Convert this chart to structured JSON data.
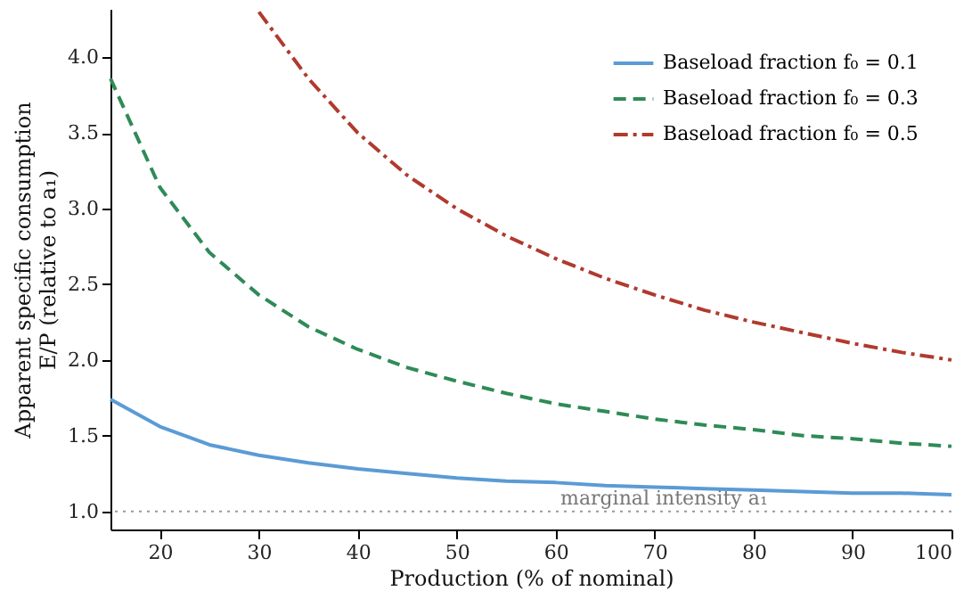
{
  "chart_data": {
    "type": "line",
    "xlabel": "Production (% of nominal)",
    "ylabel": "Apparent specific consumption\nE/P (relative to a₁)",
    "xlim": [
      15,
      100
    ],
    "xticks": [
      20,
      30,
      40,
      50,
      60,
      70,
      80,
      90,
      100
    ],
    "ylim": [
      0.88,
      4.32
    ],
    "yticks": [
      {
        "value": 1,
        "label": "1.0"
      },
      {
        "value": 1.5,
        "label": "1.5"
      },
      {
        "value": 2,
        "label": "2.0"
      },
      {
        "value": 2.5,
        "label": "2.5"
      },
      {
        "value": 3,
        "label": "3.0"
      },
      {
        "value": 3.5,
        "label": "3.5"
      },
      {
        "value": 4,
        "label": "4.0"
      }
    ],
    "grid": false,
    "legend": "top right",
    "ref_lines": [
      {
        "axis": "y",
        "value": 1,
        "label": "marginal intensity a₁",
        "color": "#999999",
        "line_style": "dotted"
      }
    ],
    "series": [
      {
        "name": "Baseload fraction f₀ = 0.1",
        "color": "#5b9bd5",
        "line_style": "solid",
        "x": [
          15,
          20,
          25,
          30,
          35,
          40,
          45,
          50,
          55,
          60,
          65,
          70,
          75,
          80,
          85,
          90,
          95,
          100
        ],
        "values": [
          1.74,
          1.56,
          1.44,
          1.37,
          1.32,
          1.28,
          1.25,
          1.22,
          1.2,
          1.19,
          1.17,
          1.16,
          1.15,
          1.14,
          1.13,
          1.12,
          1.12,
          1.11
        ]
      },
      {
        "name": "Baseload fraction f₀ = 0.3",
        "color": "#2e8b57",
        "line_style": "dashed",
        "x": [
          15,
          20,
          25,
          30,
          35,
          40,
          45,
          50,
          55,
          60,
          65,
          70,
          75,
          80,
          85,
          90,
          95,
          100
        ],
        "values": [
          3.86,
          3.14,
          2.71,
          2.43,
          2.22,
          2.07,
          1.95,
          1.86,
          1.78,
          1.71,
          1.66,
          1.61,
          1.57,
          1.54,
          1.5,
          1.48,
          1.45,
          1.43
        ]
      },
      {
        "name": "Baseload fraction f₀ = 0.5",
        "color": "#b03a2e",
        "line_style": "dashdot",
        "x": [
          30,
          35,
          40,
          45,
          50,
          55,
          60,
          65,
          70,
          75,
          80,
          85,
          90,
          95,
          100
        ],
        "values": [
          4.3,
          3.86,
          3.5,
          3.22,
          3.0,
          2.82,
          2.67,
          2.54,
          2.43,
          2.33,
          2.25,
          2.18,
          2.11,
          2.05,
          2.0
        ]
      }
    ]
  }
}
